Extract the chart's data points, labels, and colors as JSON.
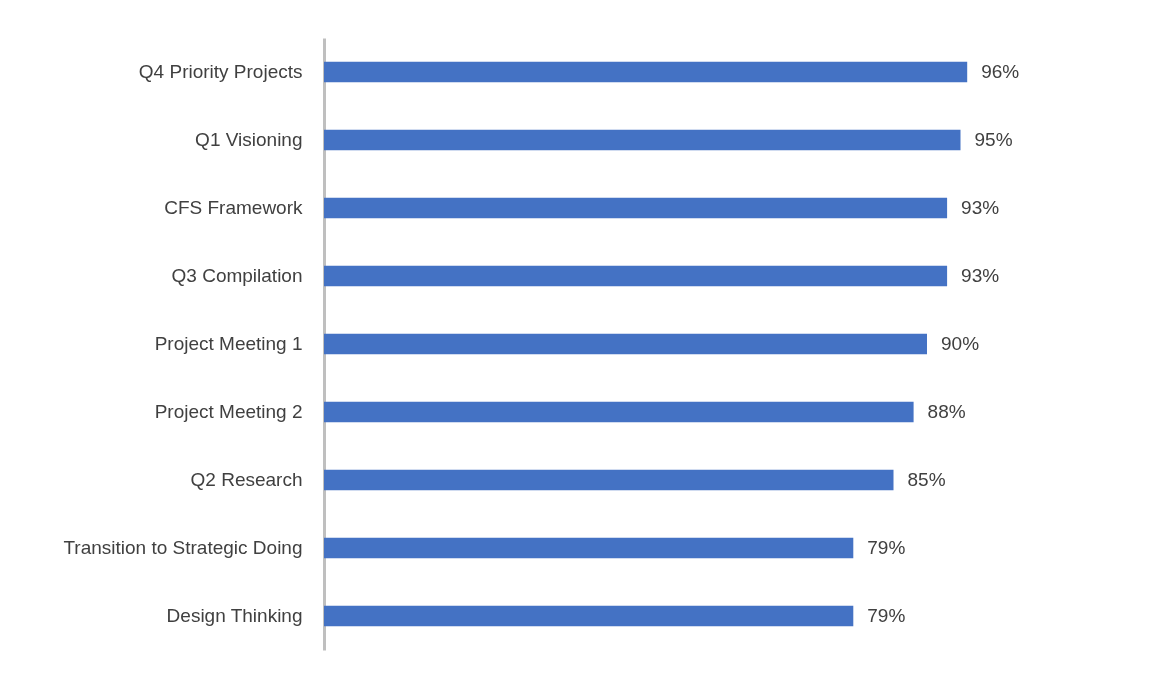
{
  "chart_data": {
    "type": "bar",
    "orientation": "horizontal",
    "categories": [
      "Q4 Priority Projects",
      "Q1 Visioning",
      "CFS Framework",
      "Q3 Compilation",
      "Project Meeting 1",
      "Project Meeting 2",
      "Q2 Research",
      "Transition to Strategic Doing",
      "Design Thinking"
    ],
    "values": [
      96,
      95,
      93,
      93,
      90,
      88,
      85,
      79,
      79
    ],
    "value_labels": [
      "96%",
      "95%",
      "93%",
      "93%",
      "90%",
      "88%",
      "85%",
      "79%",
      "79%"
    ],
    "color": "#4472c4",
    "grid": false
  }
}
